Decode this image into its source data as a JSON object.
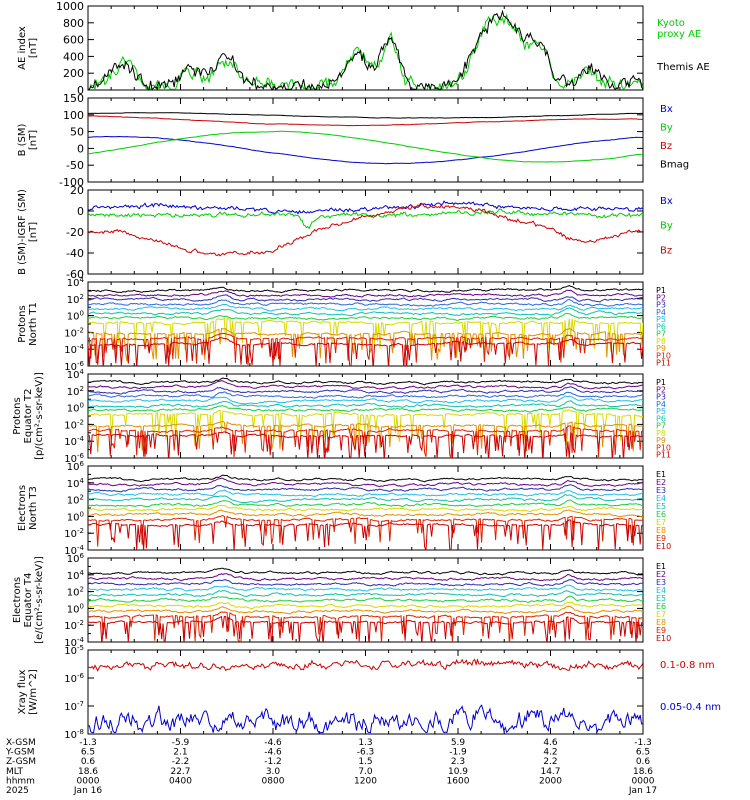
{
  "chart_data": [
    {
      "type": "line",
      "ylabel": "AE index\n[nT]",
      "ylim": [
        0,
        1000
      ],
      "yscale": "linear",
      "yticks": [
        "0",
        "200",
        "400",
        "600",
        "800",
        "1000"
      ],
      "series": [
        {
          "name": "Kyoto\nproxy AE",
          "color": "#00cc00",
          "shape": "ae_kyoto"
        },
        {
          "name": "Themis AE",
          "color": "#000000",
          "shape": "ae_themis"
        }
      ]
    },
    {
      "type": "line",
      "ylabel": "B (SM)\n[nT]",
      "ylim": [
        -100,
        150
      ],
      "yscale": "linear",
      "yticks": [
        "-100",
        "-50",
        "0",
        "50",
        "100",
        "150"
      ],
      "series": [
        {
          "name": "Bx",
          "color": "#0000cc"
        },
        {
          "name": "By",
          "color": "#00cc00"
        },
        {
          "name": "Bz",
          "color": "#cc0000"
        },
        {
          "name": "Bmag",
          "color": "#000000"
        }
      ]
    },
    {
      "type": "line",
      "ylabel": "B (SM)-IGRF (SM)\n[nT]",
      "ylim": [
        -60,
        20
      ],
      "yscale": "linear",
      "yticks": [
        "-60",
        "-40",
        "-20",
        "0",
        "20"
      ],
      "series": [
        {
          "name": "Bx",
          "color": "#0000cc"
        },
        {
          "name": "By",
          "color": "#00cc00"
        },
        {
          "name": "Bz",
          "color": "#cc0000"
        }
      ]
    },
    {
      "type": "line",
      "ylabel": "Protons\nNorth T1",
      "yscale": "log",
      "ylim_exp": [
        -6,
        4
      ],
      "ytick_exps": [
        -6,
        -4,
        -2,
        0,
        2,
        4
      ],
      "series": [
        {
          "name": "P1",
          "color": "#000000"
        },
        {
          "name": "P2",
          "color": "#6a0080"
        },
        {
          "name": "P3",
          "color": "#2e2ab0"
        },
        {
          "name": "P4",
          "color": "#2a66e0"
        },
        {
          "name": "P5",
          "color": "#20bde8"
        },
        {
          "name": "P6",
          "color": "#10c0b0"
        },
        {
          "name": "P7",
          "color": "#20cc40"
        },
        {
          "name": "P8",
          "color": "#d8d800"
        },
        {
          "name": "P9",
          "color": "#e09000"
        },
        {
          "name": "P10",
          "color": "#dd2200"
        },
        {
          "name": "P11",
          "color": "#cc0000"
        }
      ]
    },
    {
      "type": "line",
      "ylabel": "Protons\nEquator T2\n[p/(cm²-s-sr-keV)]",
      "yscale": "log",
      "ylim_exp": [
        -6,
        4
      ],
      "ytick_exps": [
        -6,
        -4,
        -2,
        0,
        2,
        4
      ],
      "series": [
        {
          "name": "P1",
          "color": "#000000"
        },
        {
          "name": "P2",
          "color": "#6a0080"
        },
        {
          "name": "P3",
          "color": "#2e2ab0"
        },
        {
          "name": "P4",
          "color": "#2a66e0"
        },
        {
          "name": "P5",
          "color": "#20bde8"
        },
        {
          "name": "P6",
          "color": "#10c0b0"
        },
        {
          "name": "P7",
          "color": "#20cc40"
        },
        {
          "name": "P8",
          "color": "#d8d800"
        },
        {
          "name": "P9",
          "color": "#e09000"
        },
        {
          "name": "P10",
          "color": "#dd2200"
        },
        {
          "name": "P11",
          "color": "#cc0000"
        }
      ]
    },
    {
      "type": "line",
      "ylabel": "Electrons\nNorth T3",
      "yscale": "log",
      "ylim_exp": [
        -4,
        6
      ],
      "ytick_exps": [
        -4,
        -2,
        0,
        2,
        4,
        6
      ],
      "series": [
        {
          "name": "E1",
          "color": "#000000"
        },
        {
          "name": "E2",
          "color": "#6a0080"
        },
        {
          "name": "E3",
          "color": "#2e2ab0"
        },
        {
          "name": "E4",
          "color": "#20bde8"
        },
        {
          "name": "E5",
          "color": "#10c0b0"
        },
        {
          "name": "E6",
          "color": "#20cc40"
        },
        {
          "name": "E7",
          "color": "#d8d800"
        },
        {
          "name": "E8",
          "color": "#e09000"
        },
        {
          "name": "E9",
          "color": "#dd2200"
        },
        {
          "name": "E10",
          "color": "#cc0000"
        }
      ]
    },
    {
      "type": "line",
      "ylabel": "Electrons\nEquator T4\n[e/(cm²-s-sr-keV)]",
      "yscale": "log",
      "ylim_exp": [
        -4,
        6
      ],
      "ytick_exps": [
        -4,
        -2,
        0,
        2,
        4,
        6
      ],
      "series": [
        {
          "name": "E1",
          "color": "#000000"
        },
        {
          "name": "E2",
          "color": "#6a0080"
        },
        {
          "name": "E3",
          "color": "#2e2ab0"
        },
        {
          "name": "E4",
          "color": "#20bde8"
        },
        {
          "name": "E5",
          "color": "#10c0b0"
        },
        {
          "name": "E6",
          "color": "#20cc40"
        },
        {
          "name": "E7",
          "color": "#d8d800"
        },
        {
          "name": "E8",
          "color": "#e09000"
        },
        {
          "name": "E9",
          "color": "#dd2200"
        },
        {
          "name": "E10",
          "color": "#cc0000"
        }
      ]
    },
    {
      "type": "line",
      "ylabel": "Xray flux\n[W/m^2]",
      "yscale": "log",
      "ylim_exp": [
        -8,
        -5
      ],
      "ytick_exps": [
        -8,
        -7,
        -6,
        -5
      ],
      "series": [
        {
          "name": "0.1-0.8 nm",
          "color": "#cc0000"
        },
        {
          "name": "0.05-0.4 nm",
          "color": "#0000cc"
        }
      ]
    }
  ],
  "time_axis": {
    "row_labels": [
      "X-GSM",
      "Y-GSM",
      "Z-GSM",
      "MLT",
      "hhmm",
      "2025"
    ],
    "ticks": [
      {
        "values": [
          "-1.3",
          "6.5",
          "0.6",
          "18.6",
          "0000",
          "Jan 16"
        ]
      },
      {
        "values": [
          "-5.9",
          "2.1",
          "-2.2",
          "22.7",
          "0400",
          ""
        ]
      },
      {
        "values": [
          "-4.6",
          "-4.6",
          "-1.2",
          "3.0",
          "0800",
          ""
        ]
      },
      {
        "values": [
          "1.3",
          "-6.3",
          "1.5",
          "7.0",
          "1200",
          ""
        ]
      },
      {
        "values": [
          "5.9",
          "-1.9",
          "2.3",
          "10.9",
          "1600",
          ""
        ]
      },
      {
        "values": [
          "4.6",
          "4.2",
          "2.2",
          "14.7",
          "2000",
          ""
        ]
      },
      {
        "values": [
          "-1.3",
          "6.5",
          "0.6",
          "18.6",
          "0000",
          "Jan 17"
        ]
      }
    ]
  }
}
